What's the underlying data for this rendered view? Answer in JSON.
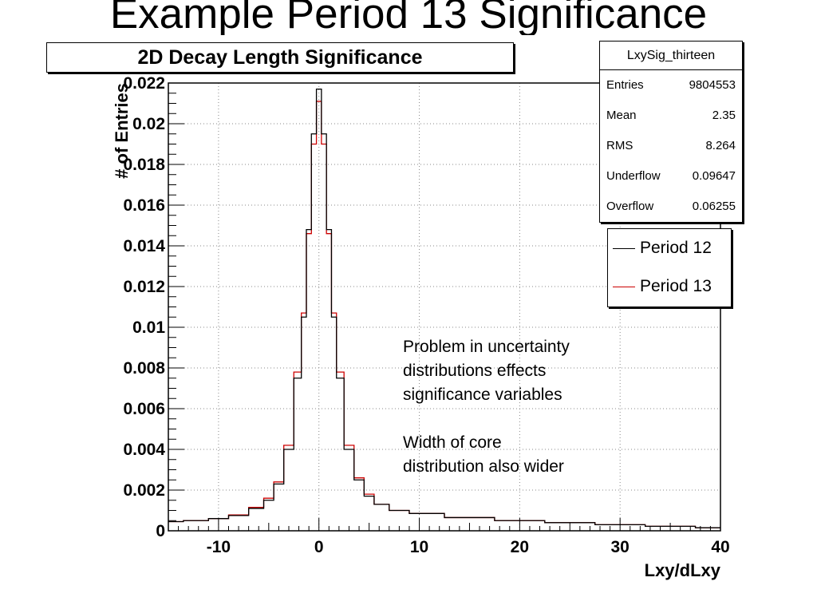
{
  "slide": {
    "title": "Example Period 13 Significance"
  },
  "stats": {
    "name": "LxySig_thirteen",
    "rows": [
      {
        "label": "Entries",
        "value": "9804553"
      },
      {
        "label": "Mean",
        "value": "2.35"
      },
      {
        "label": "RMS",
        "value": "8.264"
      },
      {
        "label": "Underflow",
        "value": "0.09647"
      },
      {
        "label": "Overflow",
        "value": "0.06255"
      }
    ]
  },
  "annotation": {
    "lines": [
      "Problem in uncertainty",
      "distributions effects",
      "significance variables",
      "",
      "Width of core",
      "distribution also wider"
    ]
  },
  "chart_data": {
    "type": "line",
    "title": "2D Decay Length Significance",
    "xlabel": "Lxy/dLxy",
    "ylabel": "# of Entries",
    "xlim": [
      -15,
      40
    ],
    "ylim": [
      0,
      0.022
    ],
    "grid": true,
    "legend_position": "top-right",
    "x_ticks": [
      -10,
      0,
      10,
      20,
      30,
      40
    ],
    "x_tick_labels": [
      "-10",
      "0",
      "10",
      "20",
      "30",
      "40"
    ],
    "y_ticks": [
      0,
      0.002,
      0.004,
      0.006,
      0.008,
      0.01,
      0.012,
      0.014,
      0.016,
      0.018,
      0.02,
      0.022
    ],
    "y_tick_labels": [
      "0",
      "0.002",
      "0.004",
      "0.006",
      "0.008",
      "0.01",
      "0.012",
      "0.014",
      "0.016",
      "0.018",
      "0.02",
      "0.022"
    ],
    "x": [
      -15,
      -12,
      -10,
      -8,
      -6,
      -5,
      -4,
      -3,
      -2,
      -1.5,
      -1,
      -0.5,
      0,
      0.5,
      1,
      1.5,
      2,
      3,
      4,
      5,
      6,
      8,
      10,
      15,
      20,
      25,
      30,
      35,
      40
    ],
    "series": [
      {
        "name": "Period 12",
        "color": "#000000",
        "values": [
          0.00045,
          0.0005,
          0.0006,
          0.00075,
          0.0011,
          0.0015,
          0.0023,
          0.004,
          0.0075,
          0.0105,
          0.0148,
          0.0195,
          0.0217,
          0.0195,
          0.0148,
          0.0105,
          0.0075,
          0.004,
          0.0025,
          0.0017,
          0.0013,
          0.001,
          0.00085,
          0.00065,
          0.0005,
          0.0004,
          0.0003,
          0.00022,
          0.00015
        ]
      },
      {
        "name": "Period 13",
        "color": "#cc0000",
        "values": [
          0.00045,
          0.0005,
          0.0006,
          0.00078,
          0.00115,
          0.0016,
          0.0024,
          0.0042,
          0.0078,
          0.0107,
          0.0146,
          0.019,
          0.0211,
          0.019,
          0.0146,
          0.0107,
          0.0078,
          0.0042,
          0.0026,
          0.0018,
          0.0013,
          0.001,
          0.00085,
          0.00065,
          0.0005,
          0.0004,
          0.0003,
          0.00022,
          0.00015
        ]
      }
    ]
  }
}
